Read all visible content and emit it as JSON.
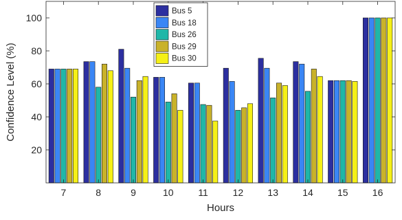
{
  "chart_data": {
    "type": "bar",
    "title": "",
    "xlabel": "Hours",
    "ylabel": "Confidence Level (%)",
    "categories": [
      "7",
      "8",
      "9",
      "10",
      "11",
      "12",
      "13",
      "14",
      "15",
      "16"
    ],
    "ylim": [
      0,
      110
    ],
    "yticks": [
      20,
      40,
      60,
      80,
      100
    ],
    "grid": false,
    "legend_position": "top-center",
    "series": [
      {
        "name": "Bus 5",
        "color": "#2c2fa0",
        "values": [
          69,
          73.5,
          81,
          64,
          60.5,
          69.5,
          75.5,
          73.5,
          62,
          100
        ]
      },
      {
        "name": "Bus 18",
        "color": "#3a86f5",
        "values": [
          69,
          73.5,
          69.5,
          64,
          60.5,
          61.5,
          69.5,
          72,
          62,
          100
        ]
      },
      {
        "name": "Bus 26",
        "color": "#1fb7a8",
        "values": [
          69,
          58,
          52,
          49,
          47.5,
          44,
          51.5,
          55.5,
          62,
          100
        ]
      },
      {
        "name": "Bus 29",
        "color": "#c9b22a",
        "values": [
          69,
          72,
          62,
          54,
          47,
          45.5,
          60.5,
          69,
          62,
          100
        ]
      },
      {
        "name": "Bus 30",
        "color": "#f5f017",
        "values": [
          69,
          68,
          64.5,
          44,
          37.5,
          48,
          59,
          64.5,
          61.5,
          100
        ]
      }
    ]
  }
}
